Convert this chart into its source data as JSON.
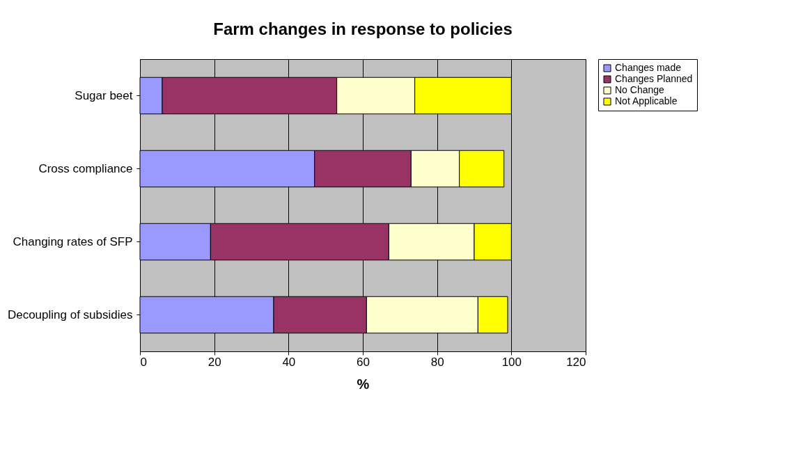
{
  "chart_data": {
    "type": "bar",
    "orientation": "horizontal",
    "stacked": true,
    "title": "Farm changes in response to policies",
    "xlabel": "%",
    "categories": [
      "Sugar beet",
      "Cross compliance",
      "Changing rates of SFP",
      "Decoupling of subsidies"
    ],
    "series": [
      {
        "name": "Changes made",
        "color": "#9999ff",
        "values": [
          6,
          47,
          19,
          36
        ]
      },
      {
        "name": "Changes Planned",
        "color": "#993366",
        "values": [
          47,
          26,
          48,
          25
        ]
      },
      {
        "name": "No Change",
        "color": "#ffffcc",
        "values": [
          21,
          13,
          23,
          30
        ]
      },
      {
        "name": "Not Applicable",
        "color": "#ffff00",
        "values": [
          26,
          12,
          10,
          8
        ]
      }
    ],
    "xlim": [
      0,
      120
    ],
    "xticks": [
      0,
      20,
      40,
      60,
      80,
      100,
      120
    ],
    "grid": "x",
    "legend": "right"
  }
}
